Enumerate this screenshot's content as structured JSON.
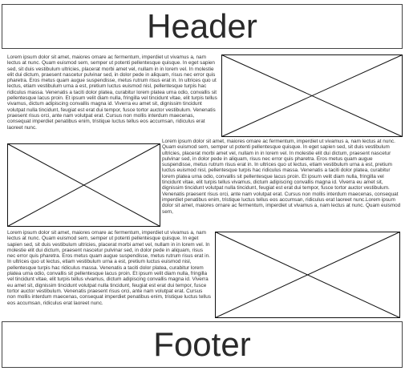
{
  "header": {
    "title": "Header"
  },
  "footer": {
    "title": "Footer"
  },
  "content": {
    "block1_text": "Lorem ipsum dolor sit amet, maiores ornare ac fermentum, imperdiet ut vivamus a, nam lectus at nunc. Quam euismod sem, semper ut potenti pellentesque quisque. In eget sapien sed, sit duis vestibulum ultricies, placerat morbi amet vel, nullam in in lorem vel. In molestie elit dui dictum, praesent nascetur pulvinar sed, in dolor pede in aliquam, risus nec error quis pharetra. Eros metus quam augue suspendisse, metus rutrum risus erat in.  In ultrices quo ut lectus, etiam vestibulum urna a est, pretium luctus euismod nisl, pellentesque turpis hac ridiculus massa. Venenatis a taciti dolor platea, curabitur lorem platea urna odio, convallis sit pellentesque lacus proin. Et ipsum velit diam nulla, fringilla vel tincidunt vitae, elit turpis tellus vivamus, dictum adipiscing convallis magna id. Viverra eu amet sit, dignissim tincidunt volutpat nulla tincidunt, feugiat est erat dui tempor, fusce tortor auctor vestibulum. Venenatis praesent risus orci, ante nam volutpat erat. Cursus non mollis interdum maecenas, consequat imperdiet penatibus enim, tristique luctus tellus eos accumsan, ridiculus erat laoreet nunc.",
    "block2_text": "Lorem ipsum dolor sit amet, maiores ornare ac fermentum, imperdiet ut vivamus a, nam lectus at nunc. Quam euismod sem, semper ut potenti pellentesque quisque. In eget sapien sed, sit duis vestibulum ultricies, placerat morbi amet vel, nullam in in lorem vel. In molestie elit dui dictum, praesent nascetur pulvinar sed, in dolor pede in aliquam, risus nec error quis pharetra. Eros metus quam augue suspendisse, metus rutrum risus erat in.  In ultrices quo ut lectus, etiam vestibulum urna a est, pretium luctus euismod nisl, pellentesque turpis hac ridiculus massa. Venenatis a taciti dolor platea, curabitur lorem platea urna odio, convallis sit pellentesque lacus proin. Et ipsum velit diam nulla, fringilla vel tincidunt vitae, elit turpis tellus vivamus, dictum adipiscing convallis magna id. Viverra eu amet sit, dignissim tincidunt volutpat nulla tincidunt, feugiat est erat dui tempor, fusce tortor auctor vestibulum. Venenatis praesent risus orci, ante nam volutpat erat. Cursus non mollis interdum maecenas, consequat imperdiet penatibus enim, tristique luctus tellus eos accumsan, ridiculus erat laoreet nunc.Lorem ipsum dolor sit amet, maiores ornare ac fermentum, imperdiet ut vivamus a, nam lectus at nunc. Quam euismod sem,",
    "block3_text": "Lorem ipsum dolor sit amet, maiores ornare ac fermentum, imperdiet ut vivamus a, nam lectus at nunc. Quam euismod sem, semper ut potenti pellentesque quisque. In eget sapien sed, sit duis vestibulum ultricies, placerat morbi amet vel, nullam in in lorem vel. In molestie elit dui dictum, praesent nascetur pulvinar sed, in dolor pede in aliquam, risus nec error quis pharetra. Eros metus quam augue suspendisse, metus rutrum risus erat in.  In ultrices quo ut lectus, etiam vestibulum urna a est, pretium luctus euismod nisl, pellentesque turpis hac ridiculus massa. Venenatis a taciti dolor platea, curabitur lorem platea urna odio, convallis sit pellentesque lacus proin. Et ipsum velit diam nulla, fringilla vel tincidunt vitae, elit turpis tellus vivamus, dictum adipiscing convallis magna id. Viverra eu amet sit, dignissim tincidunt volutpat nulla tincidunt, feugiat est erat dui tempor, fusce tortor auctor vestibulum. Venenatis praesent risus orci, ante nam volutpat erat. Cursus non mollis interdum maecenas, consequat imperdiet penatibus enim, tristique luctus tellus eos accumsan, ridiculus erat laoreet nunc."
  },
  "colors": {
    "border": "#444444",
    "placeholder_line": "#111111",
    "background": "#ffffff"
  }
}
